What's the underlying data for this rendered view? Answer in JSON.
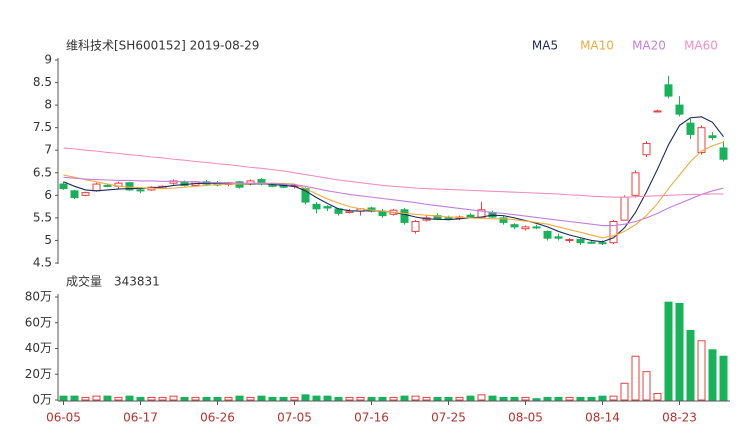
{
  "chart_data": [
    {
      "type": "candlestick",
      "title": "维科技术[SH600152] 2019-08-29",
      "categories": [
        "06-05",
        null,
        null,
        null,
        null,
        null,
        null,
        "06-17",
        null,
        null,
        null,
        null,
        null,
        null,
        "06-26",
        null,
        null,
        null,
        null,
        null,
        null,
        "07-05",
        null,
        null,
        null,
        null,
        null,
        null,
        "07-16",
        null,
        null,
        null,
        null,
        null,
        null,
        "07-25",
        null,
        null,
        null,
        null,
        null,
        null,
        "08-05",
        null,
        null,
        null,
        null,
        null,
        null,
        "08-14",
        null,
        null,
        null,
        null,
        null,
        null,
        "08-23",
        null,
        null,
        null,
        null
      ],
      "open": [
        6.25,
        6.1,
        6.0,
        6.1,
        6.22,
        6.2,
        6.28,
        6.12,
        6.12,
        6.15,
        6.27,
        6.3,
        6.22,
        6.3,
        6.28,
        6.24,
        6.3,
        6.25,
        6.35,
        6.25,
        6.24,
        6.2,
        6.15,
        5.8,
        5.75,
        5.7,
        5.62,
        5.65,
        5.72,
        5.65,
        5.58,
        5.68,
        5.2,
        5.45,
        5.55,
        5.5,
        5.5,
        5.56,
        5.5,
        5.62,
        5.5,
        5.35,
        5.26,
        5.3,
        5.2,
        5.08,
        5.0,
        5.02,
        4.96,
        4.95,
        4.95,
        5.45,
        6.0,
        6.9,
        7.86,
        8.45,
        8.0,
        7.6,
        6.95,
        7.32,
        7.05
      ],
      "high": [
        6.3,
        6.12,
        6.08,
        6.28,
        6.26,
        6.3,
        6.3,
        6.18,
        6.2,
        6.22,
        6.35,
        6.33,
        6.32,
        6.34,
        6.32,
        6.3,
        6.32,
        6.35,
        6.38,
        6.28,
        6.28,
        6.25,
        6.18,
        5.85,
        5.78,
        5.72,
        5.7,
        5.72,
        5.75,
        5.7,
        5.7,
        5.72,
        5.45,
        5.55,
        5.6,
        5.55,
        5.55,
        5.6,
        5.85,
        5.66,
        5.55,
        5.38,
        5.33,
        5.35,
        5.22,
        5.15,
        5.05,
        5.05,
        5.0,
        5.0,
        5.45,
        6.0,
        6.55,
        7.2,
        7.9,
        8.65,
        8.2,
        7.7,
        7.55,
        7.4,
        7.2
      ],
      "low": [
        6.12,
        5.92,
        5.98,
        6.08,
        6.18,
        6.15,
        6.1,
        6.05,
        6.1,
        6.14,
        6.24,
        6.2,
        6.2,
        6.22,
        6.2,
        6.2,
        6.15,
        6.22,
        6.22,
        6.18,
        6.16,
        6.15,
        5.8,
        5.6,
        5.65,
        5.55,
        5.6,
        5.55,
        5.62,
        5.5,
        5.55,
        5.35,
        5.15,
        5.42,
        5.45,
        5.45,
        5.45,
        5.5,
        5.48,
        5.5,
        5.35,
        5.25,
        5.22,
        5.25,
        5.0,
        5.0,
        4.95,
        4.9,
        4.92,
        4.9,
        4.92,
        5.45,
        5.95,
        6.85,
        7.86,
        8.15,
        7.75,
        7.25,
        6.9,
        7.22,
        6.75
      ],
      "close": [
        6.15,
        5.95,
        6.06,
        6.25,
        6.2,
        6.27,
        6.12,
        6.1,
        6.18,
        6.2,
        6.32,
        6.22,
        6.3,
        6.25,
        6.23,
        6.28,
        6.18,
        6.32,
        6.25,
        6.2,
        6.18,
        6.22,
        5.85,
        5.7,
        5.72,
        5.6,
        5.65,
        5.7,
        5.65,
        5.55,
        5.67,
        5.4,
        5.42,
        5.5,
        5.47,
        5.48,
        5.52,
        5.52,
        5.68,
        5.52,
        5.4,
        5.3,
        5.3,
        5.28,
        5.05,
        5.05,
        5.02,
        4.95,
        4.95,
        4.93,
        5.42,
        5.96,
        6.5,
        7.15,
        7.87,
        8.2,
        7.8,
        7.35,
        7.5,
        7.28,
        6.8
      ],
      "series": [
        {
          "name": "MA5",
          "color": "#1d2a5c",
          "values": [
            6.3,
            6.2,
            6.12,
            6.1,
            6.12,
            6.14,
            6.15,
            6.15,
            6.17,
            6.18,
            6.22,
            6.24,
            6.26,
            6.27,
            6.27,
            6.26,
            6.25,
            6.25,
            6.26,
            6.24,
            6.22,
            6.2,
            6.1,
            5.95,
            5.82,
            5.7,
            5.66,
            5.65,
            5.66,
            5.65,
            5.62,
            5.58,
            5.52,
            5.48,
            5.47,
            5.46,
            5.48,
            5.5,
            5.52,
            5.56,
            5.55,
            5.5,
            5.44,
            5.38,
            5.3,
            5.2,
            5.12,
            5.06,
            5.0,
            4.97,
            5.06,
            5.28,
            5.62,
            6.08,
            6.58,
            7.12,
            7.55,
            7.72,
            7.74,
            7.62,
            7.3
          ]
        },
        {
          "name": "MA10",
          "color": "#f2ab3c",
          "values": [
            6.45,
            6.4,
            6.35,
            6.3,
            6.25,
            6.2,
            6.18,
            6.17,
            6.16,
            6.15,
            6.16,
            6.18,
            6.2,
            6.22,
            6.24,
            6.25,
            6.25,
            6.26,
            6.27,
            6.27,
            6.26,
            6.25,
            6.15,
            6.03,
            5.92,
            5.83,
            5.75,
            5.7,
            5.67,
            5.65,
            5.62,
            5.6,
            5.58,
            5.56,
            5.54,
            5.52,
            5.51,
            5.5,
            5.49,
            5.48,
            5.48,
            5.46,
            5.43,
            5.4,
            5.36,
            5.3,
            5.24,
            5.18,
            5.12,
            5.06,
            5.1,
            5.2,
            5.35,
            5.55,
            5.82,
            6.15,
            6.45,
            6.75,
            6.98,
            7.1,
            7.18
          ]
        },
        {
          "name": "MA20",
          "color": "#c47fdc",
          "values": [
            6.4,
            6.38,
            6.36,
            6.35,
            6.34,
            6.33,
            6.33,
            6.32,
            6.32,
            6.31,
            6.31,
            6.3,
            6.3,
            6.29,
            6.28,
            6.28,
            6.27,
            6.27,
            6.26,
            6.26,
            6.25,
            6.24,
            6.2,
            6.15,
            6.1,
            6.06,
            6.02,
            5.99,
            5.96,
            5.93,
            5.9,
            5.87,
            5.84,
            5.8,
            5.77,
            5.74,
            5.71,
            5.68,
            5.65,
            5.62,
            5.6,
            5.57,
            5.54,
            5.51,
            5.48,
            5.45,
            5.42,
            5.39,
            5.36,
            5.33,
            5.33,
            5.36,
            5.42,
            5.5,
            5.6,
            5.72,
            5.82,
            5.92,
            6.02,
            6.1,
            6.16
          ]
        },
        {
          "name": "MA60",
          "color": "#f18fc4",
          "values": [
            7.05,
            7.03,
            7.0,
            6.98,
            6.95,
            6.93,
            6.9,
            6.88,
            6.85,
            6.83,
            6.8,
            6.78,
            6.75,
            6.73,
            6.7,
            6.68,
            6.65,
            6.62,
            6.6,
            6.57,
            6.54,
            6.5,
            6.46,
            6.42,
            6.38,
            6.34,
            6.31,
            6.28,
            6.25,
            6.22,
            6.2,
            6.18,
            6.16,
            6.15,
            6.14,
            6.13,
            6.12,
            6.11,
            6.1,
            6.09,
            6.08,
            6.07,
            6.06,
            6.05,
            6.04,
            6.03,
            6.01,
            6.0,
            5.98,
            5.97,
            5.96,
            5.96,
            5.97,
            5.98,
            5.99,
            6.0,
            6.01,
            6.02,
            6.02,
            6.03,
            6.03
          ]
        }
      ],
      "up_color": "#e8403e",
      "down_color": "#17b25a",
      "ylim": [
        4.5,
        9
      ],
      "yticks": [
        4.5,
        5,
        5.5,
        6,
        6.5,
        7,
        7.5,
        8,
        8.5,
        9
      ]
    },
    {
      "type": "bar",
      "title": "成交量",
      "total": 343831,
      "values": [
        3,
        3,
        2,
        3,
        3,
        2,
        3,
        2,
        2,
        2,
        3,
        2,
        2,
        2,
        2,
        2,
        3,
        2,
        3,
        2,
        2,
        2,
        4,
        3,
        3,
        2,
        2,
        2,
        2,
        2,
        2,
        3,
        3,
        2,
        2,
        2,
        2,
        3,
        4,
        3,
        2,
        2,
        2,
        1,
        2,
        2,
        2,
        2,
        2,
        3,
        3,
        13,
        34,
        22,
        5,
        76,
        75,
        54,
        46,
        39,
        34
      ],
      "up_color": "#e8403e",
      "down_color": "#17b25a",
      "ylim": [
        0,
        80
      ],
      "yticks": [
        {
          "value": 0,
          "label": "0万"
        },
        {
          "value": 20,
          "label": "20万"
        },
        {
          "value": 40,
          "label": "40万"
        },
        {
          "value": 60,
          "label": "60万"
        },
        {
          "value": 80,
          "label": "80万"
        }
      ]
    }
  ]
}
